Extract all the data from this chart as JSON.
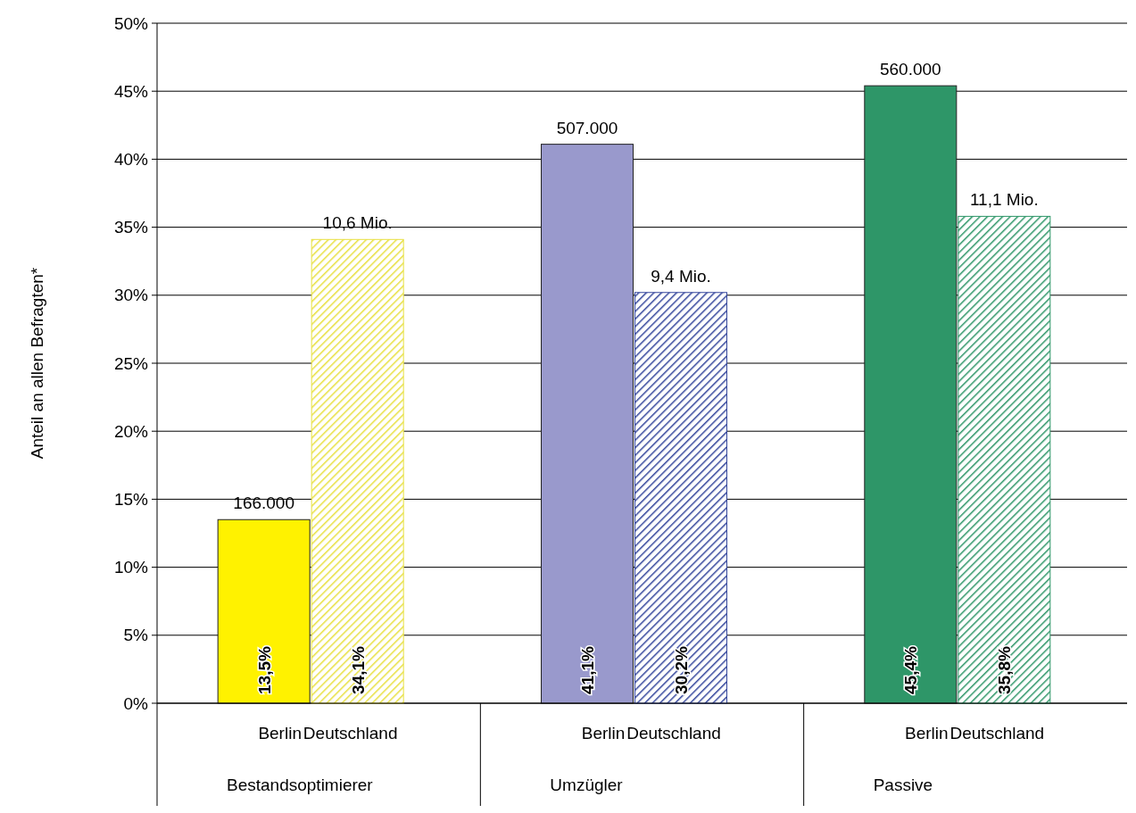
{
  "chart_data": {
    "type": "bar",
    "ylabel": "Anteil an allen Befragten*",
    "categories": [
      "Bestandsoptimierer",
      "Umzügler",
      "Passive"
    ],
    "series": [
      {
        "name": "Berlin",
        "colors": [
          "#fff200",
          "#9999cc",
          "#2e9668"
        ],
        "values": [
          13.5,
          41.1,
          45.4
        ],
        "value_labels": [
          "13,5%",
          "41,1%",
          "45,4%"
        ]
      },
      {
        "name": "Deutschland",
        "colors": [
          "#e8e040",
          "#34469c",
          "#2e9668"
        ],
        "values": [
          34.1,
          30.2,
          35.8
        ],
        "value_labels": [
          "34,1%",
          "30,2%",
          "35,8%"
        ]
      }
    ],
    "annotations": [
      "166.000",
      "10,6 Mio.",
      "507.000",
      "9,4 Mio.",
      "560.000",
      "11,1 Mio."
    ],
    "ylim": [
      0,
      50
    ],
    "yticks": [
      {
        "value": 0,
        "label": "0%"
      },
      {
        "value": 5,
        "label": "5%"
      },
      {
        "value": 10,
        "label": "10%"
      },
      {
        "value": 15,
        "label": "15%"
      },
      {
        "value": 20,
        "label": "20%"
      },
      {
        "value": 25,
        "label": "25%"
      },
      {
        "value": 30,
        "label": "30%"
      },
      {
        "value": 35,
        "label": "35%"
      },
      {
        "value": 40,
        "label": "40%"
      },
      {
        "value": 45,
        "label": "45%"
      },
      {
        "value": 50,
        "label": "50%"
      }
    ],
    "grid": "y"
  }
}
